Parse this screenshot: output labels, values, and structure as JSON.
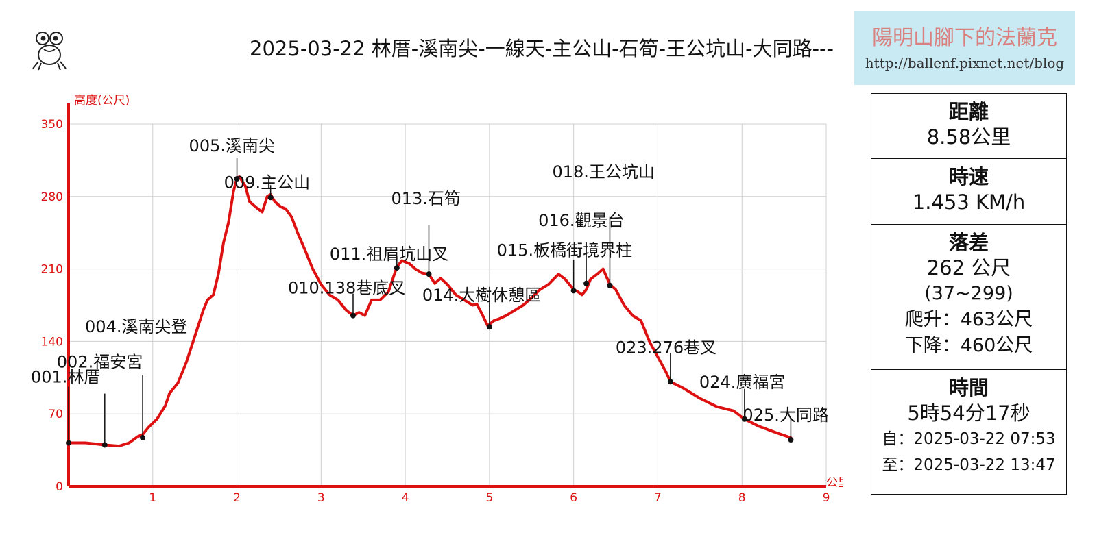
{
  "header": {
    "title": "2025-03-22 林厝-溪南尖-一線天-主公山-石筍-王公坑山-大同路---",
    "brand_name": "陽明山腳下的法蘭克",
    "brand_url": "http://ballenf.pixnet.net/blog",
    "logo_icon": "frog-icon"
  },
  "stats": {
    "distance": {
      "label": "距離",
      "value": "8.58公里"
    },
    "speed": {
      "label": "時速",
      "value": "1.453 KM/h"
    },
    "elevation": {
      "label": "落差",
      "value": "262 公尺",
      "range": "(37~299)",
      "ascent": "爬升：463公尺",
      "descent": "下降：460公尺"
    },
    "time": {
      "label": "時間",
      "value": "5時54分17秒",
      "start": "自：2025-03-22 07:53",
      "end": "至：2025-03-22 13:47"
    }
  },
  "chart_data": {
    "type": "line",
    "ylabel": "高度(公尺)",
    "xlabel": "公里",
    "xlim": [
      0,
      9
    ],
    "ylim": [
      0,
      350
    ],
    "x_ticks": [
      1,
      2,
      3,
      4,
      5,
      6,
      7,
      8,
      9
    ],
    "y_ticks": [
      0,
      70,
      140,
      210,
      280,
      350
    ],
    "grid": true,
    "line_color": "#dd1111",
    "axis_color": "#dd1111",
    "series": [
      {
        "x": [
          0,
          0.2,
          0.43,
          0.6,
          0.72,
          0.82,
          0.88,
          0.95,
          1.05,
          1.15,
          1.2,
          1.3,
          1.4,
          1.5,
          1.6,
          1.65,
          1.72,
          1.78,
          1.84,
          1.9,
          1.96,
          2.0,
          2.03,
          2.1,
          2.15,
          2.22,
          2.3,
          2.36,
          2.4,
          2.45,
          2.52,
          2.58,
          2.65,
          2.72,
          2.8,
          2.9,
          3.0,
          3.1,
          3.2,
          3.3,
          3.38,
          3.45,
          3.52,
          3.6,
          3.7,
          3.8,
          3.9,
          3.96,
          4.05,
          4.12,
          4.2,
          4.28,
          4.35,
          4.42,
          4.5,
          4.6,
          4.7,
          4.8,
          4.85,
          4.92,
          4.98,
          5.05,
          5.12,
          5.2,
          5.3,
          5.4,
          5.5,
          5.6,
          5.7,
          5.82,
          5.9,
          5.95,
          6.0,
          6.05,
          6.1,
          6.15,
          6.2,
          6.28,
          6.35,
          6.43,
          6.5,
          6.6,
          6.7,
          6.8,
          6.9,
          7.0,
          7.1,
          7.15,
          7.3,
          7.5,
          7.7,
          7.9,
          8.03,
          8.2,
          8.4,
          8.58
        ],
        "y": [
          42,
          42,
          40,
          39,
          42,
          48,
          50,
          57,
          65,
          78,
          90,
          100,
          120,
          145,
          170,
          180,
          185,
          205,
          235,
          255,
          285,
          298,
          299,
          290,
          275,
          270,
          265,
          280,
          282,
          275,
          270,
          268,
          260,
          245,
          230,
          210,
          195,
          185,
          180,
          170,
          165,
          168,
          165,
          180,
          180,
          188,
          212,
          218,
          215,
          210,
          206,
          205,
          196,
          201,
          195,
          185,
          180,
          175,
          176,
          165,
          155,
          160,
          162,
          165,
          170,
          175,
          182,
          190,
          195,
          205,
          200,
          195,
          190,
          188,
          185,
          190,
          200,
          205,
          210,
          195,
          190,
          175,
          165,
          160,
          140,
          125,
          110,
          101,
          95,
          85,
          77,
          73,
          65,
          58,
          52,
          47
        ]
      }
    ],
    "waypoints": [
      {
        "label": "001.林厝",
        "x": 0.0,
        "y": 42
      },
      {
        "label": "002.福安宮",
        "x": 0.43,
        "y": 40
      },
      {
        "label": "004.溪南尖登",
        "x": 0.88,
        "y": 47
      },
      {
        "label": "005.溪南尖",
        "x": 2.0,
        "y": 297
      },
      {
        "label": "009.主公山",
        "x": 2.4,
        "y": 279
      },
      {
        "label": "010.138巷底叉",
        "x": 3.38,
        "y": 165
      },
      {
        "label": "011.祖眉坑山叉",
        "x": 3.9,
        "y": 211
      },
      {
        "label": "013.石筍",
        "x": 4.28,
        "y": 205
      },
      {
        "label": "014.大樹休憩區",
        "x": 5.0,
        "y": 154
      },
      {
        "label": "015.板橋街境界柱",
        "x": 6.0,
        "y": 189
      },
      {
        "label": "016.觀景台",
        "x": 6.15,
        "y": 196
      },
      {
        "label": "018.王公坑山",
        "x": 6.43,
        "y": 194
      },
      {
        "label": "023.276巷叉",
        "x": 7.15,
        "y": 101
      },
      {
        "label": "024.廣福宮",
        "x": 8.03,
        "y": 65
      },
      {
        "label": "025.大同路",
        "x": 8.58,
        "y": 45
      }
    ]
  }
}
